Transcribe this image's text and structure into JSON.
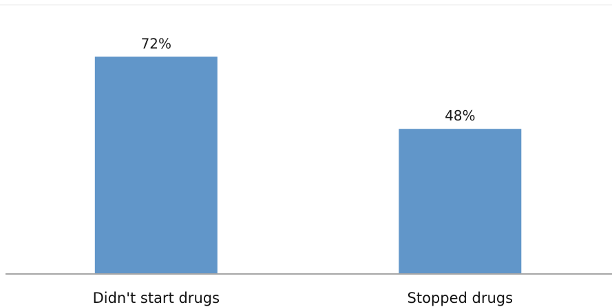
{
  "chart_data": {
    "type": "bar",
    "categories": [
      "Didn't start drugs",
      "Stopped drugs"
    ],
    "values": [
      72,
      48
    ],
    "data_labels": [
      "72%",
      "48%"
    ],
    "ylim": [
      0,
      100
    ],
    "grid": false,
    "legend": "none",
    "colors": {
      "bar": "#6196C9",
      "axis": "#A6A6A6",
      "top_rule": "#E8E8E8"
    }
  }
}
